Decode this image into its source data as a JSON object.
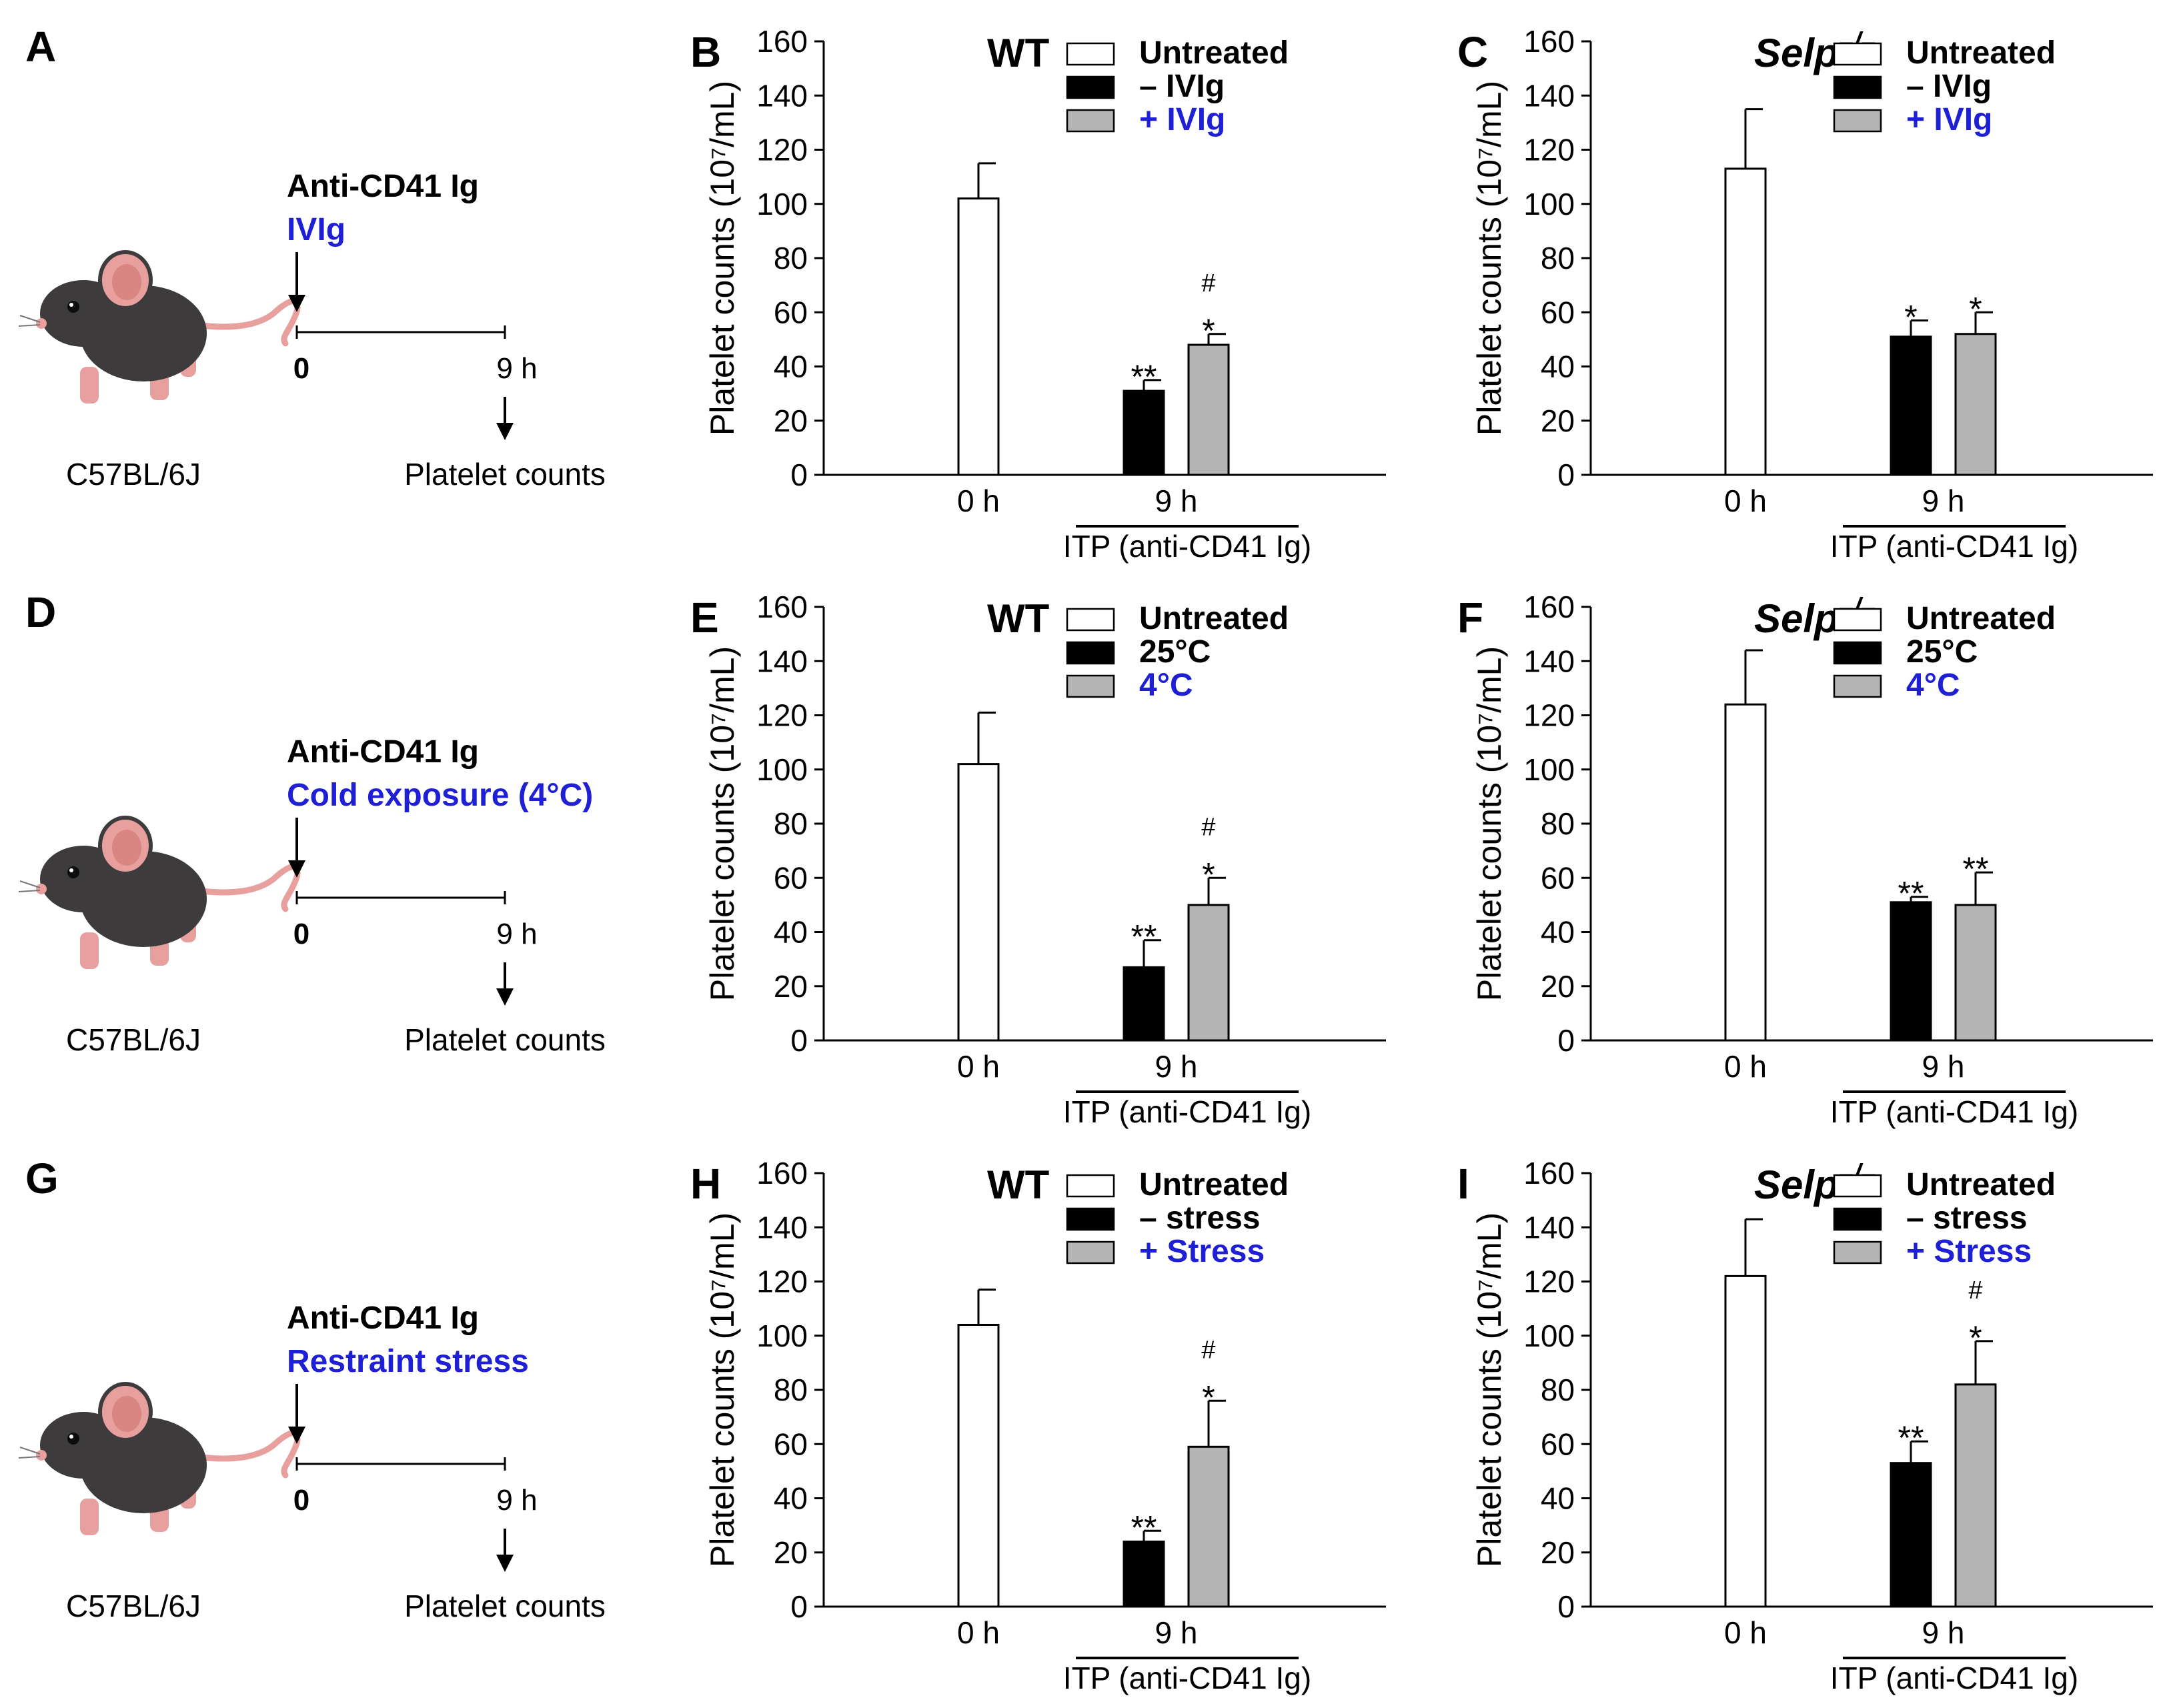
{
  "figure": {
    "colors": {
      "untreated": "#ffffff",
      "treated_a": "#000000",
      "treated_b": "#b4b4b4",
      "accent_blue": "#1f1fd6",
      "mouse_body": "#3d3b3c",
      "mouse_pink": "#e8a09e"
    },
    "schemes": [
      {
        "letter": "A",
        "line1": "Anti-CD41 Ig",
        "line2": "IVIg",
        "time0": "0",
        "time9": "9 h",
        "readout": "Platelet counts",
        "strain": "C57BL/6J"
      },
      {
        "letter": "D",
        "line1": "Anti-CD41 Ig",
        "line2": "Cold exposure (4°C)",
        "time0": "0",
        "time9": "9 h",
        "readout": "Platelet counts",
        "strain": "C57BL/6J"
      },
      {
        "letter": "G",
        "line1": "Anti-CD41 Ig",
        "line2": "Restraint stress",
        "time0": "0",
        "time9": "9 h",
        "readout": "Platelet counts",
        "strain": "C57BL/6J"
      }
    ]
  },
  "chart_data": [
    {
      "type": "bar",
      "panel": "B",
      "genotype": "WT",
      "genotype_italic": false,
      "ylabel": "Platelet counts (10⁷/mL)",
      "ylim": [
        0,
        160
      ],
      "yticks": [
        "0",
        "20",
        "40",
        "60",
        "80",
        "100",
        "120",
        "140",
        "160"
      ],
      "categories": [
        "0 h",
        "9 h"
      ],
      "group_label": "ITP (anti-CD41 Ig)",
      "series": [
        {
          "name": "Untreated",
          "values": [
            102,
            null
          ],
          "errors": [
            13,
            null
          ],
          "marks": [
            "",
            ""
          ]
        },
        {
          "name": "– IVIg",
          "values": [
            null,
            31
          ],
          "errors": [
            null,
            4
          ],
          "marks": [
            "",
            "**"
          ]
        },
        {
          "name": "+ IVIg",
          "values": [
            null,
            48
          ],
          "errors": [
            null,
            4
          ],
          "marks": [
            "",
            "*|#"
          ]
        }
      ]
    },
    {
      "type": "bar",
      "panel": "C",
      "genotype": "Selp",
      "genotype_sup": "–/–",
      "genotype_italic": true,
      "ylabel": "Platelet counts (10⁷/mL)",
      "ylim": [
        0,
        160
      ],
      "yticks": [
        "0",
        "20",
        "40",
        "60",
        "80",
        "100",
        "120",
        "140",
        "160"
      ],
      "categories": [
        "0 h",
        "9 h"
      ],
      "group_label": "ITP (anti-CD41 Ig)",
      "series": [
        {
          "name": "Untreated",
          "values": [
            113,
            null
          ],
          "errors": [
            22,
            null
          ],
          "marks": [
            "",
            ""
          ]
        },
        {
          "name": "– IVIg",
          "values": [
            null,
            51
          ],
          "errors": [
            null,
            6
          ],
          "marks": [
            "",
            "*"
          ]
        },
        {
          "name": "+ IVIg",
          "values": [
            null,
            52
          ],
          "errors": [
            null,
            8
          ],
          "marks": [
            "",
            "*"
          ]
        }
      ]
    },
    {
      "type": "bar",
      "panel": "E",
      "genotype": "WT",
      "genotype_italic": false,
      "ylabel": "Platelet counts (10⁷/mL)",
      "ylim": [
        0,
        160
      ],
      "yticks": [
        "0",
        "20",
        "40",
        "60",
        "80",
        "100",
        "120",
        "140",
        "160"
      ],
      "categories": [
        "0 h",
        "9 h"
      ],
      "group_label": "ITP (anti-CD41 Ig)",
      "series": [
        {
          "name": "Untreated",
          "values": [
            102,
            null
          ],
          "errors": [
            19,
            null
          ],
          "marks": [
            "",
            ""
          ]
        },
        {
          "name": "25°C",
          "values": [
            null,
            27
          ],
          "errors": [
            null,
            10
          ],
          "marks": [
            "",
            "**"
          ]
        },
        {
          "name": "4°C",
          "values": [
            null,
            50
          ],
          "errors": [
            null,
            10
          ],
          "marks": [
            "",
            "*|#"
          ]
        }
      ]
    },
    {
      "type": "bar",
      "panel": "F",
      "genotype": "Selp",
      "genotype_sup": "–/–",
      "genotype_italic": true,
      "ylabel": "Platelet counts (10⁷/mL)",
      "ylim": [
        0,
        160
      ],
      "yticks": [
        "0",
        "20",
        "40",
        "60",
        "80",
        "100",
        "120",
        "140",
        "160"
      ],
      "categories": [
        "0 h",
        "9 h"
      ],
      "group_label": "ITP (anti-CD41 Ig)",
      "series": [
        {
          "name": "Untreated",
          "values": [
            124,
            null
          ],
          "errors": [
            20,
            null
          ],
          "marks": [
            "",
            ""
          ]
        },
        {
          "name": "25°C",
          "values": [
            null,
            51
          ],
          "errors": [
            null,
            2
          ],
          "marks": [
            "",
            "**"
          ]
        },
        {
          "name": "4°C",
          "values": [
            null,
            50
          ],
          "errors": [
            null,
            12
          ],
          "marks": [
            "",
            "**"
          ]
        }
      ]
    },
    {
      "type": "bar",
      "panel": "H",
      "genotype": "WT",
      "genotype_italic": false,
      "ylabel": "Platelet counts (10⁷/mL)",
      "ylim": [
        0,
        160
      ],
      "yticks": [
        "0",
        "20",
        "40",
        "60",
        "80",
        "100",
        "120",
        "140",
        "160"
      ],
      "categories": [
        "0 h",
        "9 h"
      ],
      "group_label": "ITP (anti-CD41 Ig)",
      "series": [
        {
          "name": "Untreated",
          "values": [
            104,
            null
          ],
          "errors": [
            13,
            null
          ],
          "marks": [
            "",
            ""
          ]
        },
        {
          "name": "– stress",
          "values": [
            null,
            24
          ],
          "errors": [
            null,
            4
          ],
          "marks": [
            "",
            "**"
          ]
        },
        {
          "name": "+ Stress",
          "values": [
            null,
            59
          ],
          "errors": [
            null,
            17
          ],
          "marks": [
            "",
            "*|#"
          ]
        }
      ]
    },
    {
      "type": "bar",
      "panel": "I",
      "genotype": "Selp",
      "genotype_sup": "–/–",
      "genotype_italic": true,
      "ylabel": "Platelet counts (10⁷/mL)",
      "ylim": [
        0,
        160
      ],
      "yticks": [
        "0",
        "20",
        "40",
        "60",
        "80",
        "100",
        "120",
        "140",
        "160"
      ],
      "categories": [
        "0 h",
        "9 h"
      ],
      "group_label": "ITP (anti-CD41 Ig)",
      "series": [
        {
          "name": "Untreated",
          "values": [
            122,
            null
          ],
          "errors": [
            21,
            null
          ],
          "marks": [
            "",
            ""
          ]
        },
        {
          "name": "– stress",
          "values": [
            null,
            53
          ],
          "errors": [
            null,
            8
          ],
          "marks": [
            "",
            "**"
          ]
        },
        {
          "name": "+ Stress",
          "values": [
            null,
            82
          ],
          "errors": [
            null,
            16
          ],
          "marks": [
            "",
            "*|#"
          ]
        }
      ]
    }
  ]
}
